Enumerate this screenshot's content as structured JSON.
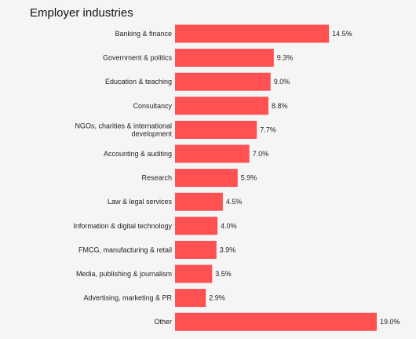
{
  "chart_data": {
    "type": "bar",
    "orientation": "horizontal",
    "title": "Employer industries",
    "unit_suffix": "%",
    "xlim": [
      0,
      19.0
    ],
    "grid": false,
    "bar_color": "#ff5052",
    "categories": [
      "Banking & finance",
      "Government & politics",
      "Education & teaching",
      "Consultancy",
      "NGOs, charities & international development",
      "Accounting & auditing",
      "Research",
      "Law & legal services",
      "Information & digital technology",
      "FMCG, manufacturing & retail",
      "Media, publishing & journalism",
      "Advertising, marketing & PR",
      "Other"
    ],
    "values": [
      14.5,
      9.3,
      9.0,
      8.8,
      7.7,
      7.0,
      5.9,
      4.5,
      4.0,
      3.9,
      3.5,
      2.9,
      19.0
    ],
    "value_labels": [
      "14.5%",
      "9.3%",
      "9.0%",
      "8.8%",
      "7.7%",
      "7.0%",
      "5.9%",
      "4.5%",
      "4.0%",
      "3.9%",
      "3.5%",
      "2.9%",
      "19.0%"
    ]
  }
}
